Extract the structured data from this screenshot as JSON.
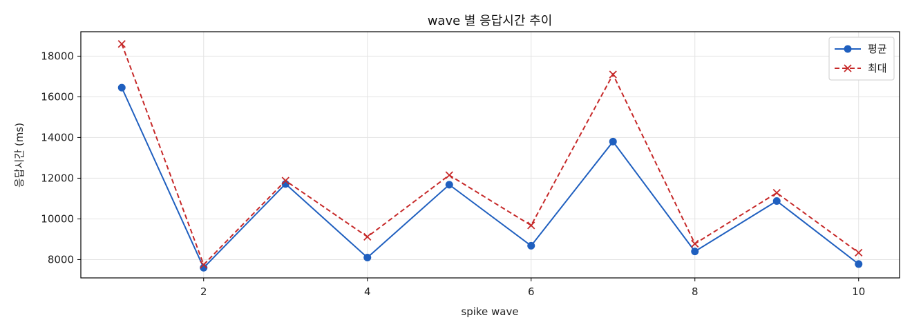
{
  "chart_data": {
    "type": "line",
    "title": "wave 별 응답시간 추이",
    "xlabel": "spike wave",
    "ylabel": "응답시간 (ms)",
    "x": [
      1,
      2,
      3,
      4,
      5,
      6,
      7,
      8,
      9,
      10
    ],
    "xlim": [
      0.5,
      10.5
    ],
    "ylim": [
      7100,
      19200
    ],
    "xticks": [
      2,
      4,
      6,
      8,
      10
    ],
    "yticks": [
      8000,
      10000,
      12000,
      14000,
      16000,
      18000
    ],
    "grid": true,
    "legend_position": "top-right",
    "series": [
      {
        "name": "평균",
        "color": "#1f5fbf",
        "line_style": "solid",
        "marker": "circle",
        "values": [
          16450,
          7600,
          11720,
          8100,
          11680,
          8680,
          13800,
          8400,
          10880,
          7780
        ]
      },
      {
        "name": "최대",
        "color": "#c62828",
        "line_style": "dashed",
        "marker": "x",
        "values": [
          18600,
          7750,
          11880,
          9120,
          12150,
          9680,
          17100,
          8780,
          11280,
          8340
        ]
      }
    ]
  }
}
